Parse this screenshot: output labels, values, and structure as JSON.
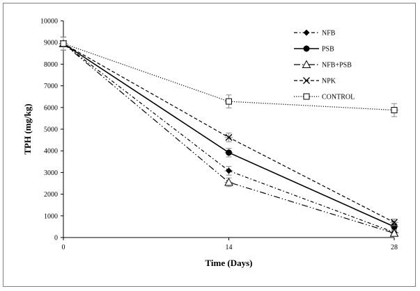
{
  "chart_data": {
    "type": "line",
    "xlabel": "Time (Days)",
    "ylabel": "TPH (mg/kg)",
    "x": [
      0,
      14,
      28
    ],
    "xlim": [
      0,
      28
    ],
    "ylim": [
      0,
      10000
    ],
    "xticks": [
      0,
      14,
      28
    ],
    "yticks": [
      0,
      1000,
      2000,
      3000,
      4000,
      5000,
      6000,
      7000,
      8000,
      9000,
      10000
    ],
    "grid": false,
    "legend_position": "top-right",
    "series": [
      {
        "name": "NFB",
        "values": [
          8950,
          3080,
          240
        ],
        "errors": [
          300,
          200,
          150
        ],
        "marker": "diamond",
        "dash": "5,3,1.5,3"
      },
      {
        "name": "PSB",
        "values": [
          8950,
          3920,
          500
        ],
        "errors": [
          300,
          200,
          150
        ],
        "marker": "circle",
        "dash": ""
      },
      {
        "name": "NFB+PSB",
        "values": [
          8950,
          2550,
          200
        ],
        "errors": [
          300,
          200,
          120
        ],
        "marker": "triangle",
        "dash": "9,3,1.5,3,1.5,3"
      },
      {
        "name": "NPK",
        "values": [
          8950,
          4620,
          700
        ],
        "errors": [
          300,
          200,
          150
        ],
        "marker": "cross",
        "dash": "5,3"
      },
      {
        "name": "CONTROL",
        "values": [
          8950,
          6280,
          5880
        ],
        "errors": [
          300,
          300,
          300
        ],
        "marker": "square",
        "dash": "1.2,2"
      }
    ]
  }
}
